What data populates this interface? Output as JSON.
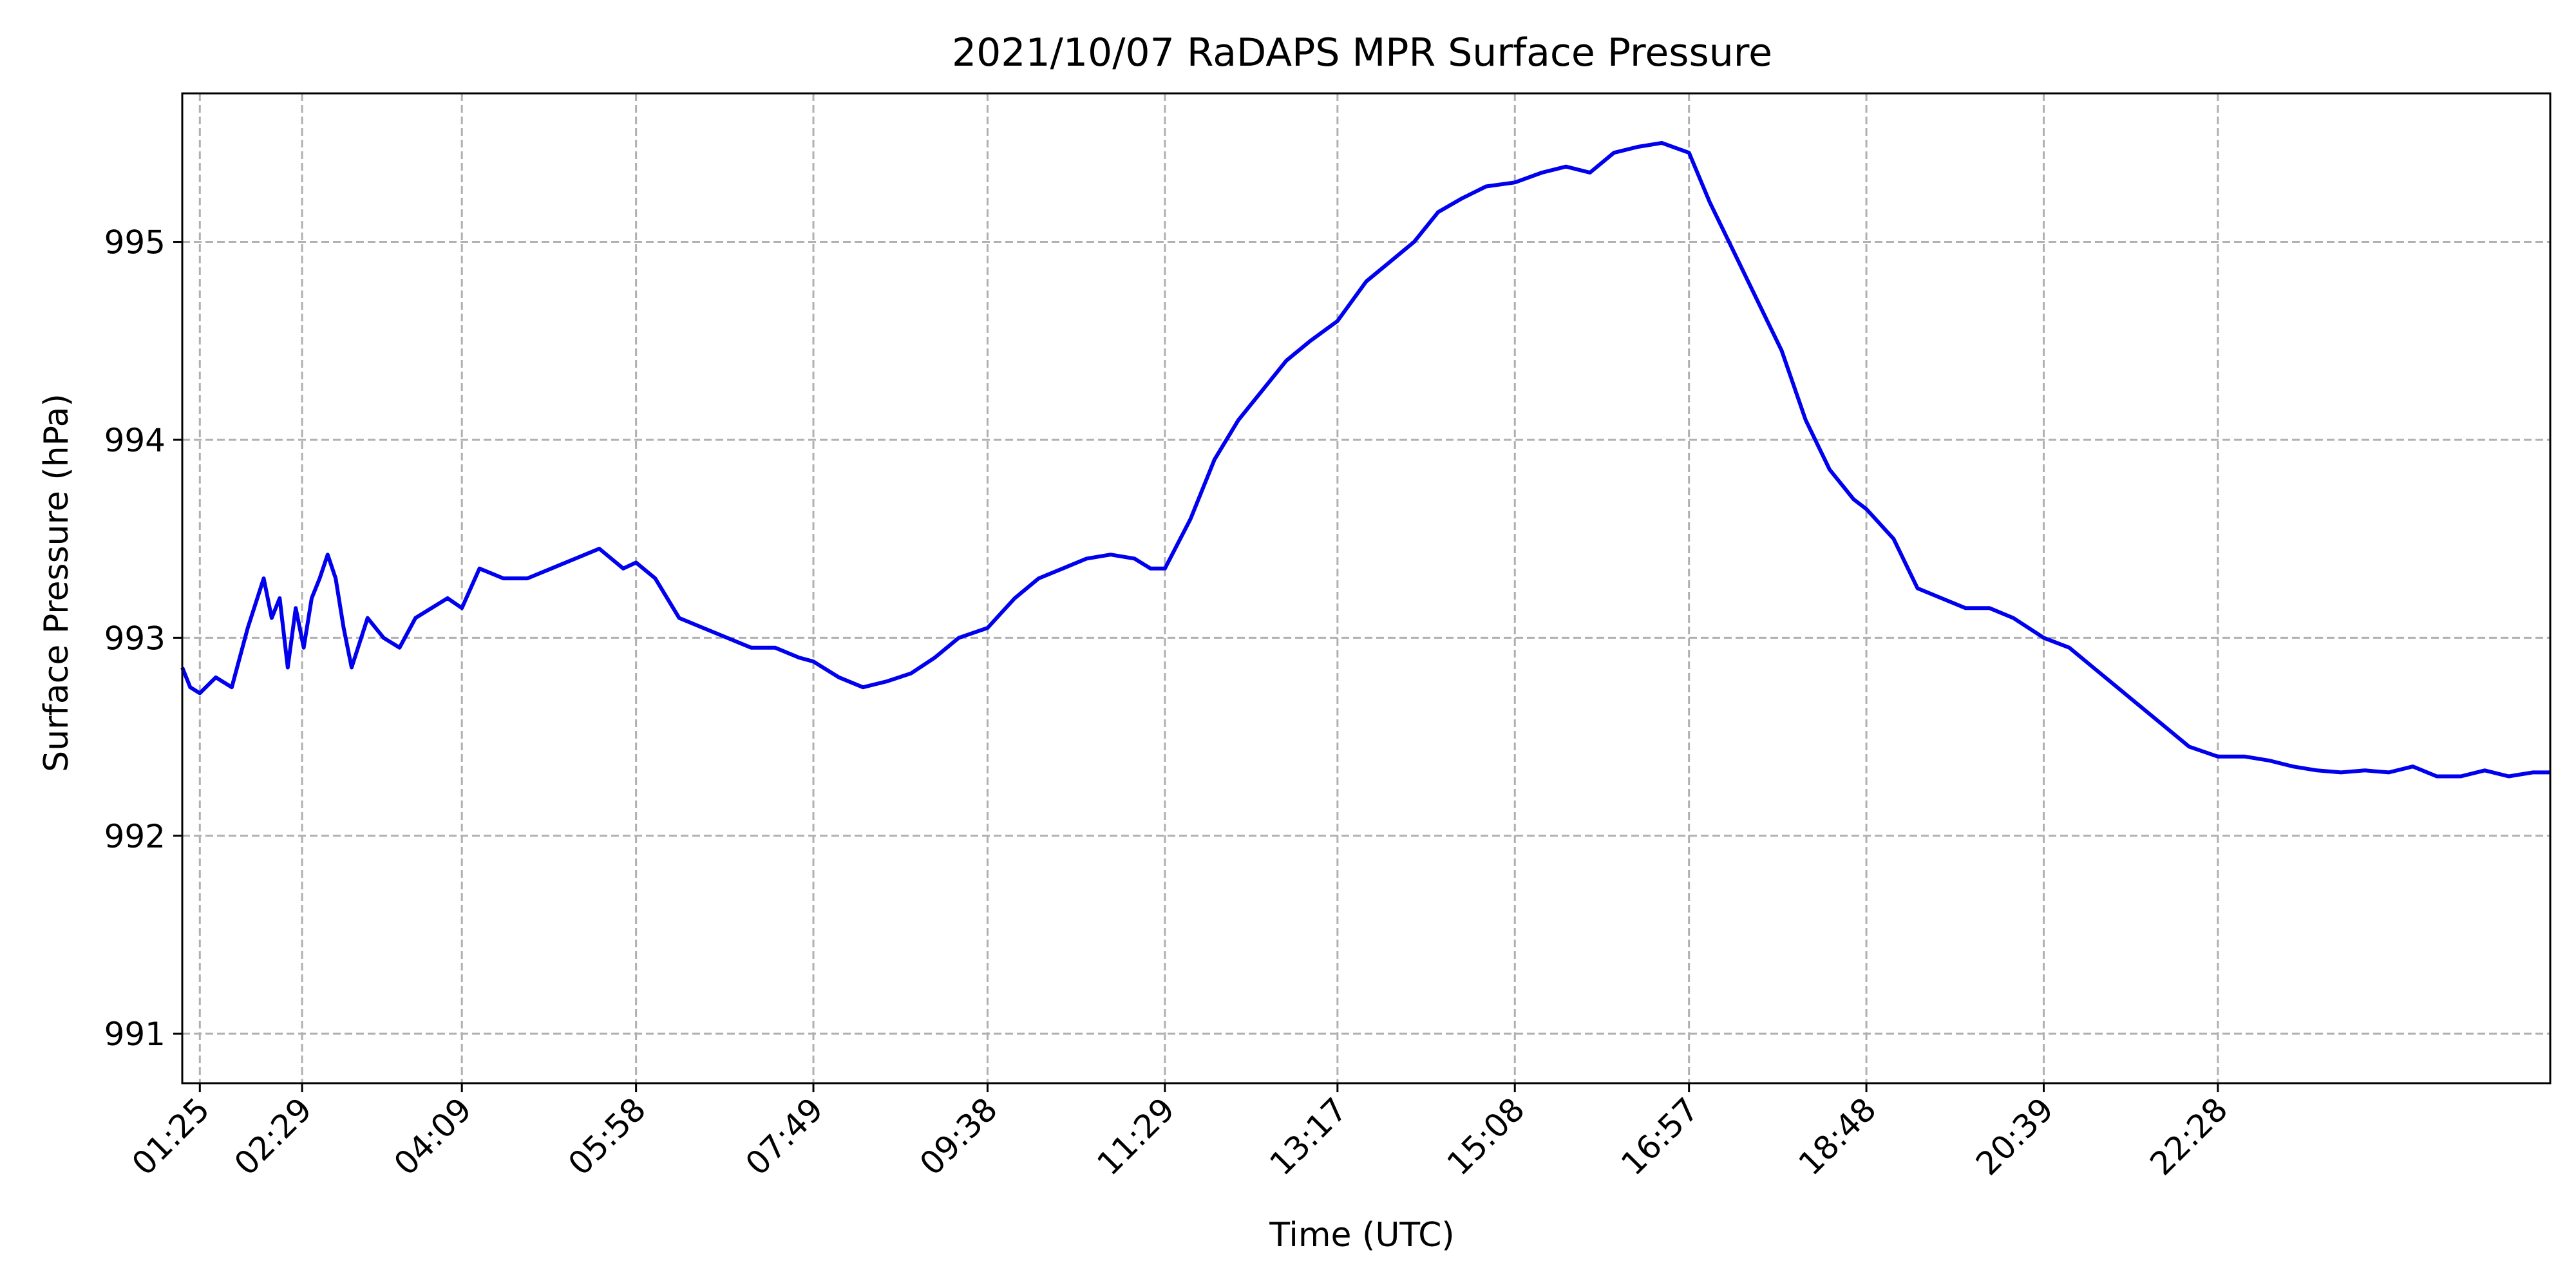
{
  "chart_data": {
    "type": "line",
    "title": "2021/10/07 RaDAPS MPR Surface Pressure",
    "xlabel": "Time (UTC)",
    "ylabel": "Surface Pressure (hPa)",
    "x_unit": "time of day (UTC)",
    "xlim": [
      "01:14",
      "25:56"
    ],
    "ylim": [
      990.75,
      995.75
    ],
    "x_ticks": [
      "01:25",
      "02:29",
      "04:09",
      "05:58",
      "07:49",
      "09:38",
      "11:29",
      "13:17",
      "15:08",
      "16:57",
      "18:48",
      "20:39",
      "22:28"
    ],
    "y_ticks": [
      991,
      992,
      993,
      994,
      995
    ],
    "grid": true,
    "line_color": "#0000ee",
    "grid_color": "#b0b0b0",
    "series": [
      {
        "x": [
          "01:14",
          "01:19",
          "01:25",
          "01:35",
          "01:45",
          "01:55",
          "02:05",
          "02:10",
          "02:15",
          "02:20",
          "02:25",
          "02:30",
          "02:35",
          "02:40",
          "02:45",
          "02:50",
          "02:55",
          "03:00",
          "03:10",
          "03:20",
          "03:30",
          "03:40",
          "03:50",
          "04:00",
          "04:09",
          "04:20",
          "04:35",
          "04:50",
          "05:05",
          "05:20",
          "05:35",
          "05:50",
          "05:58",
          "06:10",
          "06:25",
          "06:40",
          "06:55",
          "07:10",
          "07:25",
          "07:40",
          "07:49",
          "08:05",
          "08:20",
          "08:35",
          "08:50",
          "09:05",
          "09:20",
          "09:38",
          "09:55",
          "10:10",
          "10:25",
          "10:40",
          "10:55",
          "11:10",
          "11:20",
          "11:29",
          "11:45",
          "12:00",
          "12:15",
          "12:30",
          "12:45",
          "13:00",
          "13:17",
          "13:35",
          "13:50",
          "14:05",
          "14:20",
          "14:35",
          "14:50",
          "15:08",
          "15:25",
          "15:40",
          "15:55",
          "16:10",
          "16:25",
          "16:40",
          "16:57",
          "17:10",
          "17:25",
          "17:40",
          "17:55",
          "18:10",
          "18:25",
          "18:40",
          "18:48",
          "19:05",
          "19:20",
          "19:35",
          "19:50",
          "20:05",
          "20:20",
          "20:39",
          "20:55",
          "21:10",
          "21:25",
          "21:40",
          "21:55",
          "22:10",
          "22:28",
          "22:45",
          "23:00",
          "23:15",
          "23:30",
          "23:45",
          "24:00",
          "24:15",
          "24:30",
          "24:45",
          "25:00",
          "25:15",
          "25:30",
          "25:45",
          "25:56"
        ],
        "y": [
          992.85,
          992.75,
          992.72,
          992.8,
          992.75,
          993.05,
          993.3,
          993.1,
          993.2,
          992.85,
          993.15,
          992.95,
          993.2,
          993.3,
          993.42,
          993.3,
          993.05,
          992.85,
          993.1,
          993.0,
          992.95,
          993.1,
          993.15,
          993.2,
          993.15,
          993.35,
          993.3,
          993.3,
          993.35,
          993.4,
          993.45,
          993.35,
          993.38,
          993.3,
          993.1,
          993.05,
          993.0,
          992.95,
          992.95,
          992.9,
          992.88,
          992.8,
          992.75,
          992.78,
          992.82,
          992.9,
          993.0,
          993.05,
          993.2,
          993.3,
          993.35,
          993.4,
          993.42,
          993.4,
          993.35,
          993.35,
          993.6,
          993.9,
          994.1,
          994.25,
          994.4,
          994.5,
          994.6,
          994.8,
          994.9,
          995.0,
          995.15,
          995.22,
          995.28,
          995.3,
          995.35,
          995.38,
          995.35,
          995.45,
          995.48,
          995.5,
          995.45,
          995.2,
          994.95,
          994.7,
          994.45,
          994.1,
          993.85,
          993.7,
          993.65,
          993.5,
          993.25,
          993.2,
          993.15,
          993.15,
          993.1,
          993.0,
          992.95,
          992.85,
          992.75,
          992.65,
          992.55,
          992.45,
          992.4,
          992.4,
          992.38,
          992.35,
          992.33,
          992.32,
          992.33,
          992.32,
          992.35,
          992.3,
          992.3,
          992.33,
          992.3,
          992.32,
          992.32
        ]
      }
    ]
  }
}
